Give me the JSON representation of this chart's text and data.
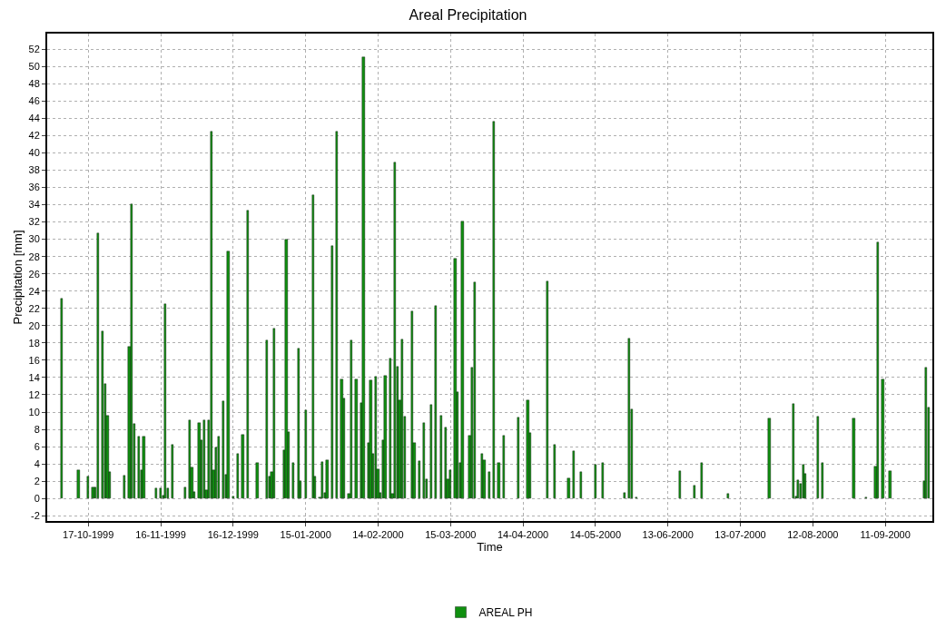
{
  "chart_data": {
    "type": "bar",
    "title": "Areal Precipitation",
    "xlabel": "Time",
    "ylabel": "Precipitation [mm]",
    "xlim": [
      "1999-09-30",
      "2000-09-30T12:00"
    ],
    "xticks": [
      {
        "value": "1999-10-17",
        "label": "17-10-1999"
      },
      {
        "value": "1999-11-16",
        "label": "16-11-1999"
      },
      {
        "value": "1999-12-16",
        "label": "16-12-1999"
      },
      {
        "value": "2000-01-15",
        "label": "15-01-2000"
      },
      {
        "value": "2000-02-14",
        "label": "14-02-2000"
      },
      {
        "value": "2000-03-15",
        "label": "15-03-2000"
      },
      {
        "value": "2000-04-14",
        "label": "14-04-2000"
      },
      {
        "value": "2000-05-14",
        "label": "14-05-2000"
      },
      {
        "value": "2000-06-13",
        "label": "13-06-2000"
      },
      {
        "value": "2000-07-13",
        "label": "13-07-2000"
      },
      {
        "value": "2000-08-12",
        "label": "12-08-2000"
      },
      {
        "value": "2000-09-11",
        "label": "11-09-2000"
      }
    ],
    "ylim": [
      -2.6,
      53.8
    ],
    "yticks": [
      -2,
      0,
      2,
      4,
      6,
      8,
      10,
      12,
      14,
      16,
      18,
      20,
      22,
      24,
      26,
      28,
      30,
      32,
      34,
      36,
      38,
      40,
      42,
      44,
      46,
      48,
      50,
      52
    ],
    "grid": true,
    "legend": "bottom",
    "series": [
      {
        "name": "AREAL PH",
        "color": "#109010",
        "x": [
          "1999-10-06",
          "1999-10-13",
          "1999-10-17",
          "1999-10-19",
          "1999-10-20",
          "1999-10-21",
          "1999-10-23",
          "1999-10-24",
          "1999-10-25",
          "1999-10-26",
          "1999-11-01",
          "1999-11-03",
          "1999-11-04",
          "1999-11-05",
          "1999-11-07",
          "1999-11-08",
          "1999-11-09",
          "1999-11-14",
          "1999-11-16",
          "1999-11-17",
          "1999-11-18",
          "1999-11-19",
          "1999-11-21",
          "1999-11-26",
          "1999-11-28",
          "1999-11-29",
          "1999-11-30",
          "1999-12-02",
          "1999-12-03",
          "1999-12-04",
          "1999-12-05",
          "1999-12-06",
          "1999-12-07",
          "1999-12-08",
          "1999-12-09",
          "1999-12-10",
          "1999-12-12",
          "1999-12-13",
          "1999-12-14",
          "1999-12-16",
          "1999-12-18",
          "1999-12-20",
          "1999-12-22",
          "1999-12-26",
          "1999-12-30",
          "1999-12-31",
          "2000-01-01",
          "2000-01-02",
          "2000-01-06",
          "2000-01-07",
          "2000-01-08",
          "2000-01-10",
          "2000-01-12",
          "2000-01-13",
          "2000-01-15",
          "2000-01-18",
          "2000-01-19",
          "2000-01-21",
          "2000-01-22",
          "2000-01-23",
          "2000-01-24",
          "2000-01-26",
          "2000-01-28",
          "2000-01-30",
          "2000-01-31",
          "2000-02-02",
          "2000-02-03",
          "2000-02-05",
          "2000-02-07",
          "2000-02-08",
          "2000-02-10",
          "2000-02-11",
          "2000-02-12",
          "2000-02-13",
          "2000-02-14",
          "2000-02-15",
          "2000-02-16",
          "2000-02-17",
          "2000-02-19",
          "2000-02-20",
          "2000-02-21",
          "2000-02-22",
          "2000-02-23",
          "2000-02-24",
          "2000-02-25",
          "2000-02-28",
          "2000-02-29",
          "2000-03-02",
          "2000-03-04",
          "2000-03-05",
          "2000-03-07",
          "2000-03-09",
          "2000-03-11",
          "2000-03-13",
          "2000-03-14",
          "2000-03-15",
          "2000-03-17",
          "2000-03-18",
          "2000-03-19",
          "2000-03-20",
          "2000-03-23",
          "2000-03-24",
          "2000-03-25",
          "2000-03-28",
          "2000-03-29",
          "2000-03-31",
          "2000-04-02",
          "2000-04-04",
          "2000-04-06",
          "2000-04-12",
          "2000-04-16",
          "2000-04-17",
          "2000-04-24",
          "2000-04-27",
          "2000-05-03",
          "2000-05-05",
          "2000-05-08",
          "2000-05-14",
          "2000-05-17",
          "2000-05-26",
          "2000-05-28",
          "2000-05-29",
          "2000-05-31",
          "2000-06-18",
          "2000-06-24",
          "2000-06-27",
          "2000-07-08",
          "2000-07-25",
          "2000-08-04",
          "2000-08-05",
          "2000-08-06",
          "2000-08-07",
          "2000-08-08",
          "2000-08-09",
          "2000-08-14",
          "2000-08-16",
          "2000-08-29",
          "2000-09-03",
          "2000-09-07",
          "2000-09-08",
          "2000-09-10",
          "2000-09-13",
          "2000-09-27",
          "2000-09-28",
          "2000-09-29"
        ],
        "values": [
          23.1,
          3.3,
          2.5,
          1.3,
          1.3,
          30.7,
          19.3,
          13.3,
          9.6,
          3.1,
          2.7,
          17.6,
          34.1,
          8.6,
          7.2,
          3.3,
          7.2,
          1.2,
          1.2,
          0.3,
          22.5,
          1.2,
          6.2,
          1.3,
          9.1,
          3.6,
          0.8,
          8.7,
          6.8,
          9.1,
          1.0,
          9.1,
          42.5,
          3.3,
          5.9,
          7.2,
          11.3,
          2.8,
          28.6,
          0.2,
          5.2,
          7.4,
          33.3,
          4.1,
          18.3,
          2.5,
          3.1,
          19.7,
          5.6,
          30.0,
          7.7,
          4.1,
          17.4,
          2.0,
          10.2,
          35.1,
          2.5,
          0.1,
          4.2,
          0.7,
          4.4,
          29.2,
          42.5,
          13.8,
          11.6,
          0.5,
          18.3,
          13.8,
          11.1,
          51.1,
          6.4,
          13.7,
          5.2,
          14.1,
          3.4,
          0.7,
          6.7,
          14.2,
          16.2,
          0.5,
          38.9,
          15.3,
          11.4,
          18.4,
          9.5,
          21.7,
          6.4,
          4.3,
          8.7,
          2.2,
          10.8,
          22.3,
          9.6,
          8.2,
          2.2,
          3.3,
          27.8,
          12.3,
          4.1,
          32.1,
          7.3,
          15.1,
          25.0,
          5.2,
          4.4,
          3.1,
          43.6,
          4.1,
          7.3,
          9.4,
          11.4,
          7.6,
          25.1,
          6.2,
          2.3,
          5.5,
          3.1,
          3.9,
          4.1,
          0.7,
          18.5,
          10.3,
          0.1,
          3.2,
          1.5,
          4.1,
          0.5,
          9.3,
          11.0,
          0.2,
          2.1,
          1.7,
          3.9,
          2.9,
          9.5,
          4.1,
          9.3,
          0.1,
          3.7,
          29.6,
          13.8,
          3.2,
          2.0,
          15.1,
          10.5
        ]
      }
    ]
  }
}
